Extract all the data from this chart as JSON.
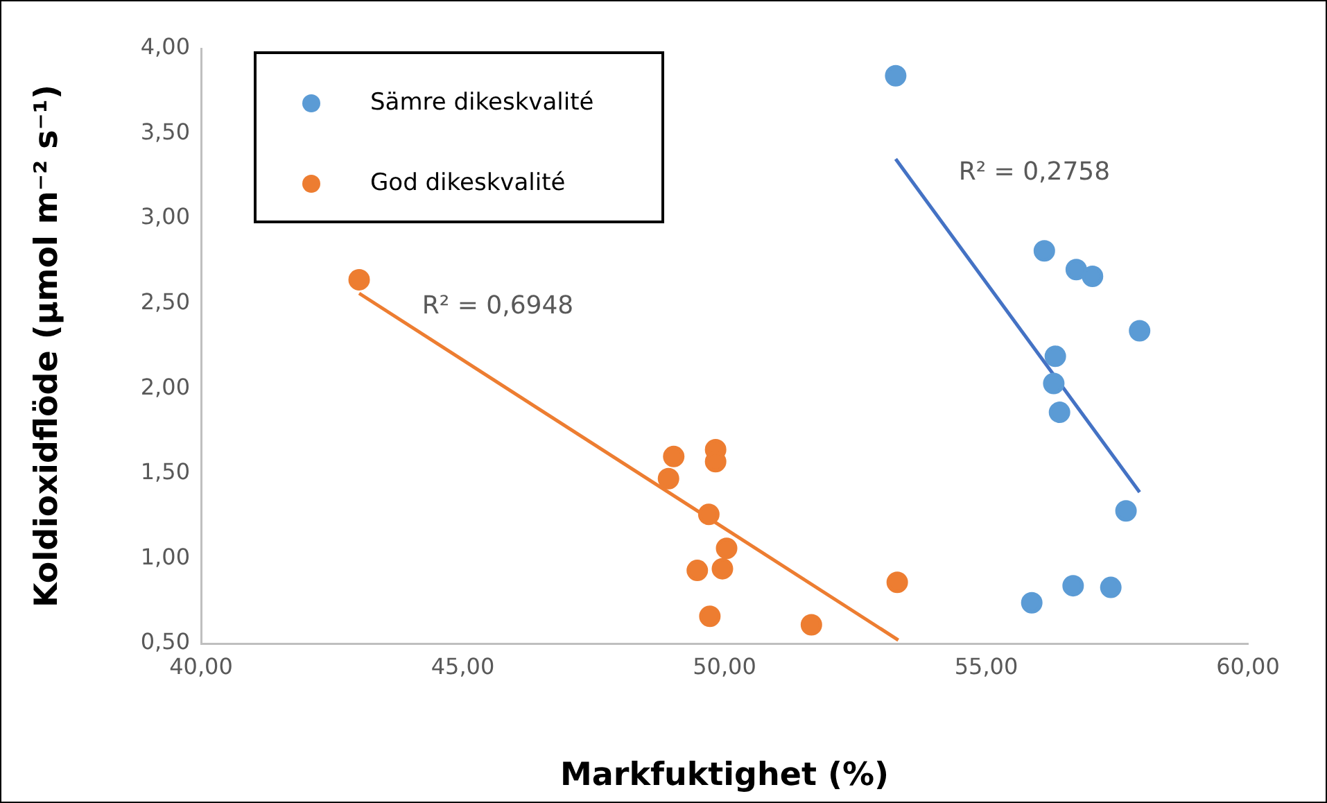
{
  "chart_data": {
    "type": "scatter",
    "xlabel": "Markfuktighet (%)",
    "ylabel": "Koldioxidflöde (µmol m⁻² s⁻¹)",
    "xlim": [
      40,
      60
    ],
    "ylim": [
      0.5,
      4
    ],
    "xticks": [
      {
        "value": 40,
        "label": "40,00"
      },
      {
        "value": 45,
        "label": "45,00"
      },
      {
        "value": 50,
        "label": "50,00"
      },
      {
        "value": 55,
        "label": "55,00"
      },
      {
        "value": 60,
        "label": "60,00"
      }
    ],
    "yticks": [
      {
        "value": 0.5,
        "label": "0,50"
      },
      {
        "value": 1,
        "label": "1,00"
      },
      {
        "value": 1.5,
        "label": "1,50"
      },
      {
        "value": 2,
        "label": "2,00"
      },
      {
        "value": 2.5,
        "label": "2,50"
      },
      {
        "value": 3,
        "label": "3,00"
      },
      {
        "value": 3.5,
        "label": "3,50"
      },
      {
        "value": 4,
        "label": "4,00"
      }
    ],
    "grid": false,
    "legend": "top left",
    "marker": "circle",
    "series": [
      {
        "name": "Sämre dikeskvalité",
        "color": "#5b9bd5",
        "x": [
          53.27,
          56.11,
          56.72,
          57.03,
          57.93,
          56.32,
          56.29,
          56.4,
          57.67,
          55.87,
          56.66,
          57.38
        ],
        "values": [
          3.84,
          2.81,
          2.7,
          2.66,
          2.34,
          2.19,
          2.03,
          1.86,
          1.28,
          0.74,
          0.84,
          0.83
        ]
      },
      {
        "name": "God dikeskvalité",
        "color": "#ed7d31",
        "x": [
          43.02,
          49.03,
          48.93,
          49.83,
          49.83,
          49.7,
          50.04,
          49.96,
          49.48,
          49.72,
          51.66,
          53.3
        ],
        "values": [
          2.64,
          1.6,
          1.47,
          1.64,
          1.57,
          1.26,
          1.06,
          0.94,
          0.93,
          0.66,
          0.61,
          0.86
        ]
      },
      {
        "type": "line",
        "color": "#4472c4",
        "line_style": "solid",
        "marker": "none",
        "x": [
          53.27,
          57.93
        ],
        "values": [
          3.35,
          1.39
        ]
      },
      {
        "type": "line",
        "color": "#ed7d31",
        "line_style": "solid",
        "marker": "none",
        "x": [
          43.02,
          53.32
        ],
        "values": [
          2.56,
          0.52
        ]
      }
    ],
    "annotations": [
      "R² = 0,6948",
      "R² = 0,2758"
    ]
  }
}
